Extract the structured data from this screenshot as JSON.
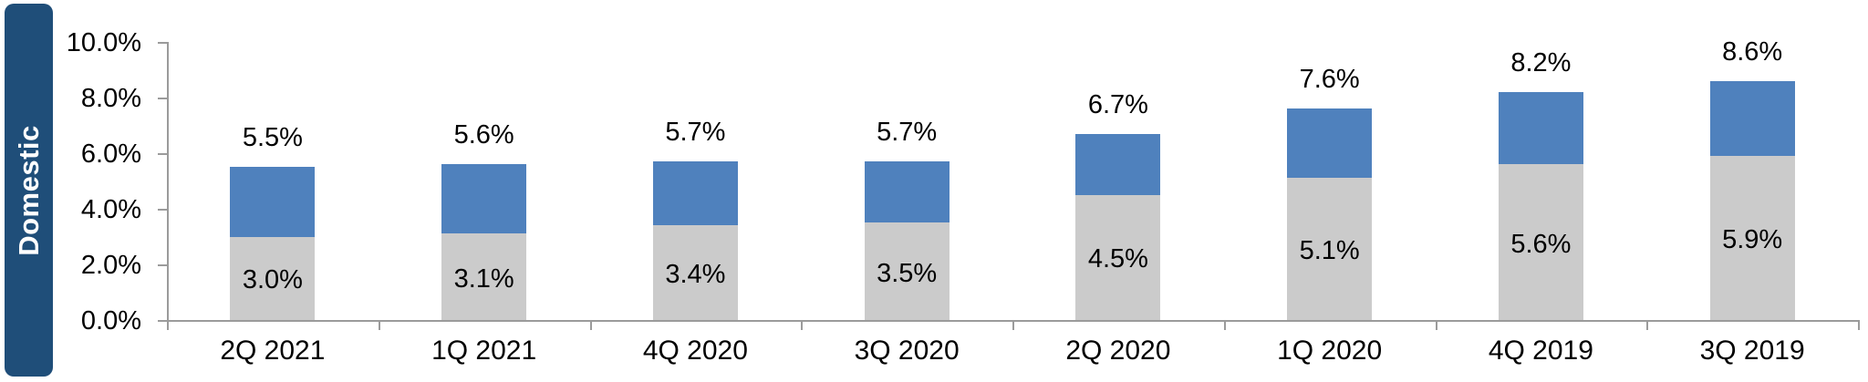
{
  "panel": {
    "label": "Domestic"
  },
  "colors": {
    "banner_bg": "#1F4E79",
    "banner_text": "#FFFFFF",
    "series_gray": "#CBCBCB",
    "series_blue": "#4F81BD",
    "axis_line": "#9B9B9B",
    "label_text": "#000000"
  },
  "chart_data": {
    "type": "bar",
    "stacked": true,
    "title": "",
    "categories": [
      "2Q 2021",
      "1Q 2021",
      "4Q 2020",
      "3Q 2020",
      "2Q 2020",
      "1Q 2020",
      "4Q 2019",
      "3Q 2019"
    ],
    "series": [
      {
        "name": "bottom-gray-segment",
        "color": "#CBCBCB",
        "values": [
          3.0,
          3.1,
          3.4,
          3.5,
          4.5,
          5.1,
          5.6,
          5.9
        ],
        "labels": [
          "3.0%",
          "3.1%",
          "3.4%",
          "3.5%",
          "4.5%",
          "5.1%",
          "5.6%",
          "5.9%"
        ]
      },
      {
        "name": "top-blue-segment",
        "color": "#4F81BD",
        "values": [
          2.5,
          2.5,
          2.3,
          2.2,
          2.2,
          2.5,
          2.6,
          2.7
        ]
      }
    ],
    "totals": {
      "values": [
        5.5,
        5.6,
        5.7,
        5.7,
        6.7,
        7.6,
        8.2,
        8.6
      ],
      "labels": [
        "5.5%",
        "5.6%",
        "5.7%",
        "5.7%",
        "6.7%",
        "7.6%",
        "8.2%",
        "8.6%"
      ]
    },
    "y_axis": {
      "min": 0,
      "max": 10,
      "tick_step": 2,
      "tick_labels": [
        "10.0%",
        "8.0%",
        "6.0%",
        "4.0%",
        "2.0%",
        "0.0%"
      ]
    },
    "legend": {
      "visible": false
    },
    "grid": false
  }
}
